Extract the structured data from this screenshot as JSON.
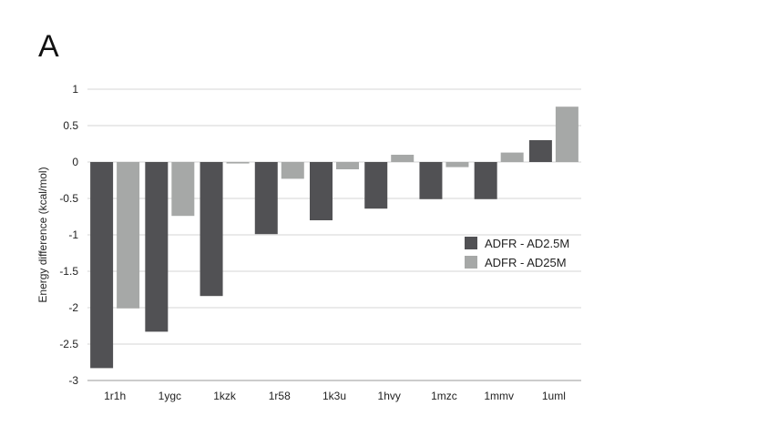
{
  "panel_label": "A",
  "chart_data": {
    "type": "bar",
    "title": "",
    "xlabel": "",
    "ylabel": "Energy difference (kcal/mol)",
    "categories": [
      "1r1h",
      "1ygc",
      "1kzk",
      "1r58",
      "1k3u",
      "1hvy",
      "1mzc",
      "1mmv",
      "1uml"
    ],
    "series": [
      {
        "name": "ADFR - AD2.5M",
        "color": "#515154",
        "values": [
          -2.83,
          -2.33,
          -1.84,
          -0.99,
          -0.8,
          -0.64,
          -0.51,
          -0.51,
          0.3
        ]
      },
      {
        "name": "ADFR - AD25M",
        "color": "#a6a8a7",
        "values": [
          -2.01,
          -0.74,
          -0.02,
          -0.23,
          -0.1,
          0.1,
          -0.07,
          0.13,
          0.76
        ]
      }
    ],
    "ylim": [
      -3,
      1
    ],
    "yticks": [
      1,
      0.5,
      0,
      -0.5,
      -1,
      -1.5,
      -2,
      -2.5,
      -3
    ],
    "ytick_labels": [
      "1",
      "0.5",
      "0",
      "-0.5",
      "-1",
      "-1.5",
      "-2",
      "-2.5",
      "-3"
    ],
    "grid": true,
    "legend_position": "right"
  }
}
